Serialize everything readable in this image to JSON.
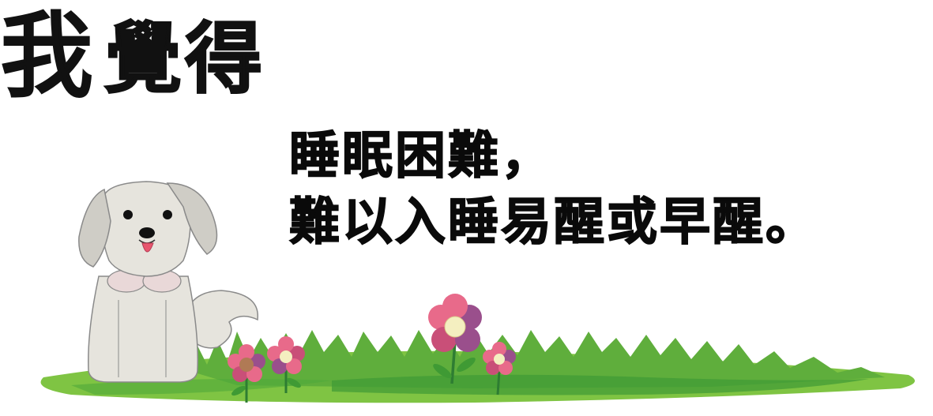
{
  "heading": {
    "chars": [
      "我",
      "覺",
      "得"
    ]
  },
  "statement": {
    "lines": [
      "睡眠困難，",
      "難以入睡易醒或早醒。"
    ]
  },
  "illustration": {
    "subject": "dog-sitting-on-grass-with-flowers",
    "colors": {
      "dog_fur": "#e6e4dd",
      "dog_ear": "#cfcdc6",
      "dog_outline": "#8a8a8a",
      "tongue": "#e8566f",
      "grass_light": "#7fc443",
      "grass_dark": "#3f9a34",
      "flower_petal_pink": "#e86a8a",
      "flower_petal_purple": "#9a4f8c",
      "flower_center": "#f4efc0",
      "stem": "#2e7d32"
    }
  }
}
